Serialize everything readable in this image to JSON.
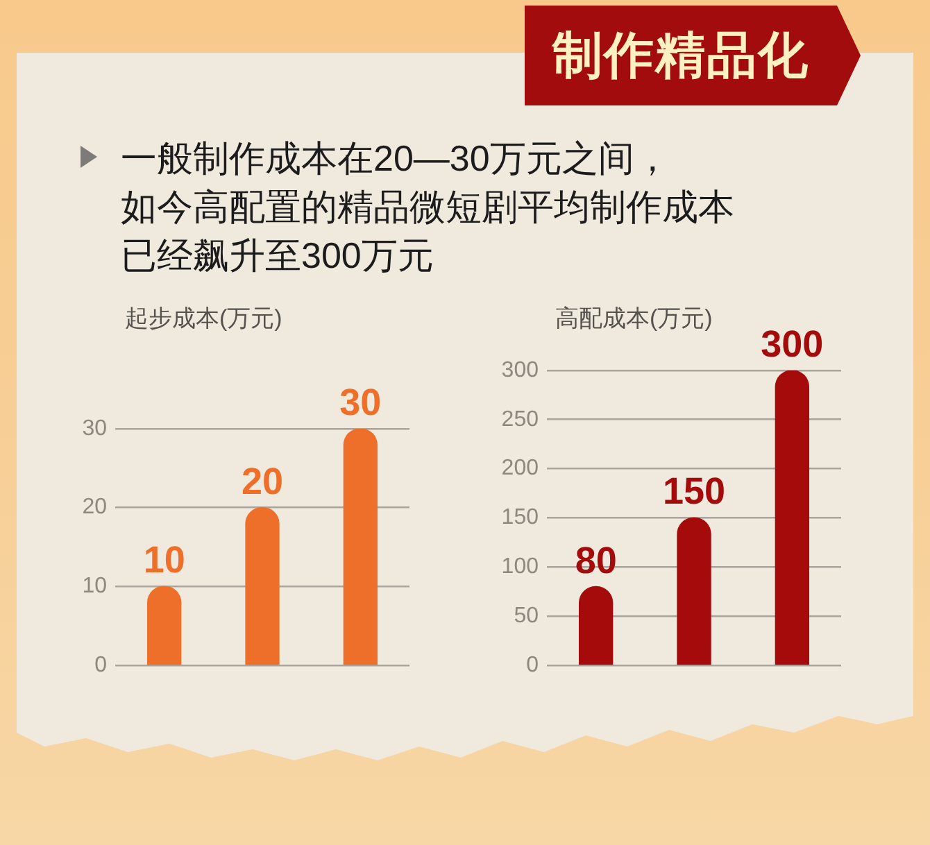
{
  "chart_data": [
    {
      "type": "other",
      "title": "制作精品化",
      "annotations": [
        "一般制作成本在20—30万元之间，",
        "如今高配置的精品微短剧平均制作成本",
        "已经飙升至300万元"
      ]
    },
    {
      "type": "bar",
      "ylabel": "起步成本(万元)",
      "categories": [
        null,
        null,
        null
      ],
      "values": [
        10,
        20,
        30
      ],
      "color": "#ee6f2a",
      "ylim": [
        0,
        30
      ],
      "yticks": [
        0,
        10,
        20,
        30
      ],
      "grid": "y",
      "tick_labels": "y",
      "data_labels": true
    },
    {
      "type": "bar",
      "ylabel": "高配成本(万元)",
      "categories": [
        null,
        null,
        null
      ],
      "values": [
        80,
        150,
        300
      ],
      "color": "#a50b0b",
      "ylim": [
        0,
        300
      ],
      "yticks": [
        0,
        50,
        100,
        150,
        200,
        250,
        300
      ],
      "grid": "y",
      "tick_labels": "y",
      "data_labels": true
    }
  ]
}
